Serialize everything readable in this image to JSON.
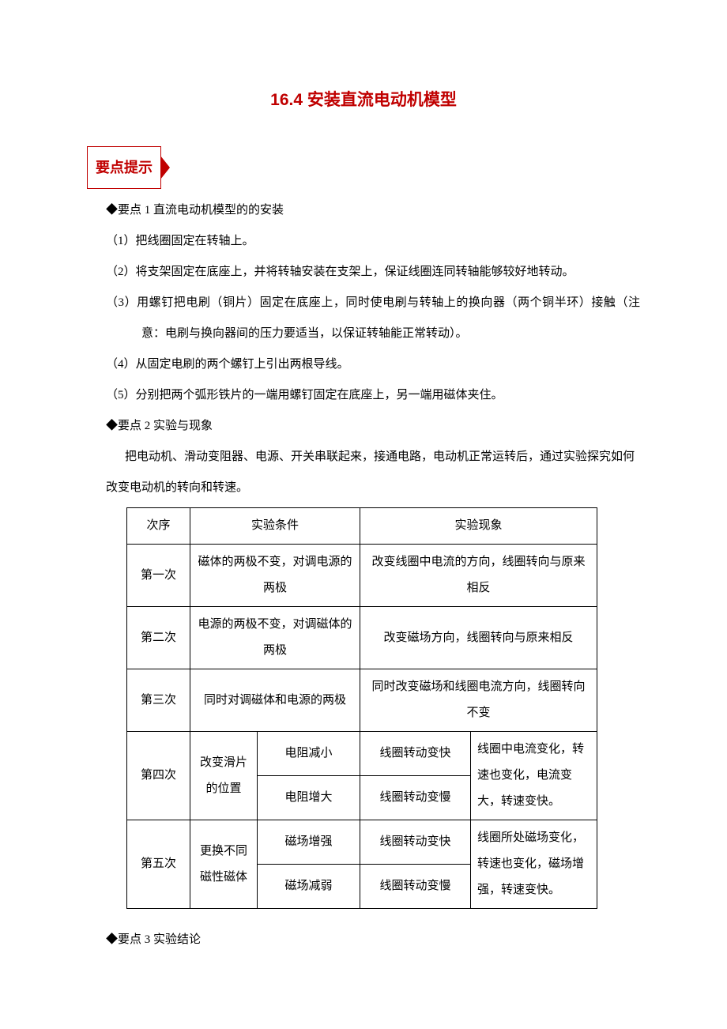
{
  "title_color": "#c00000",
  "title_number": "16.4",
  "title_text": "安装直流电动机模型",
  "badge": {
    "label": "要点提示",
    "border_color": "#c00000",
    "text_color": "#c00000"
  },
  "point1": {
    "header": "◆要点 1 直流电动机模型的的安装",
    "items": [
      "（1）把线圈固定在转轴上。",
      "（2）将支架固定在底座上，并将转轴安装在支架上，保证线圈连同转轴能够较好地转动。",
      "（3）用螺钉把电刷（铜片）固定在底座上，同时使电刷与转轴上的换向器（两个铜半环）接触（注意：电刷与换向器间的压力要适当，以保证转轴能正常转动）。",
      "（4）从固定电刷的两个螺钉上引出两根导线。",
      "（5）分别把两个弧形铁片的一端用螺钉固定在底座上，另一端用磁体夹住。"
    ]
  },
  "point2": {
    "header": "◆要点 2 实验与现象",
    "intro_a": "把电动机、滑动变阻器、电源、开关串联起来，接通电路，电动机正常运转后，通过实验探究如何",
    "intro_b": "改变电动机的转向和转速。"
  },
  "table": {
    "header": {
      "order": "次序",
      "condition": "实验条件",
      "phenomenon": "实验现象"
    },
    "row1": {
      "order": "第一次",
      "condition": "磁体的两极不变，对调电源的两极",
      "phenomenon": "改变线圈中电流的方向，线圈转向与原来相反"
    },
    "row2": {
      "order": "第二次",
      "condition": "电源的两极不变，对调磁体的两极",
      "phenomenon": "改变磁场方向，线圈转向与原来相反"
    },
    "row3": {
      "order": "第三次",
      "condition": "同时对调磁体和电源的两极",
      "phenomenon": "同时改变磁场和线圈电流方向，线圈转向不变"
    },
    "row4": {
      "order": "第四次",
      "cond_a": "改变滑片的位置",
      "cond_b1": "电阻减小",
      "phen_a1": "线圈转动变快",
      "cond_b2": "电阻增大",
      "phen_a2": "线圈转动变慢",
      "phen_b": "线圈中电流变化，转速也变化，电流变大，转速变快。"
    },
    "row5": {
      "order": "第五次",
      "cond_a": "更换不同磁性磁体",
      "cond_b1": "磁场增强",
      "phen_a1": "线圈转动变快",
      "cond_b2": "磁场减弱",
      "phen_a2": "线圈转动变慢",
      "phen_b": "线圈所处磁场变化，转速也变化，磁场增强，转速变快。"
    }
  },
  "point3": {
    "header": "◆要点 3 实验结论"
  }
}
